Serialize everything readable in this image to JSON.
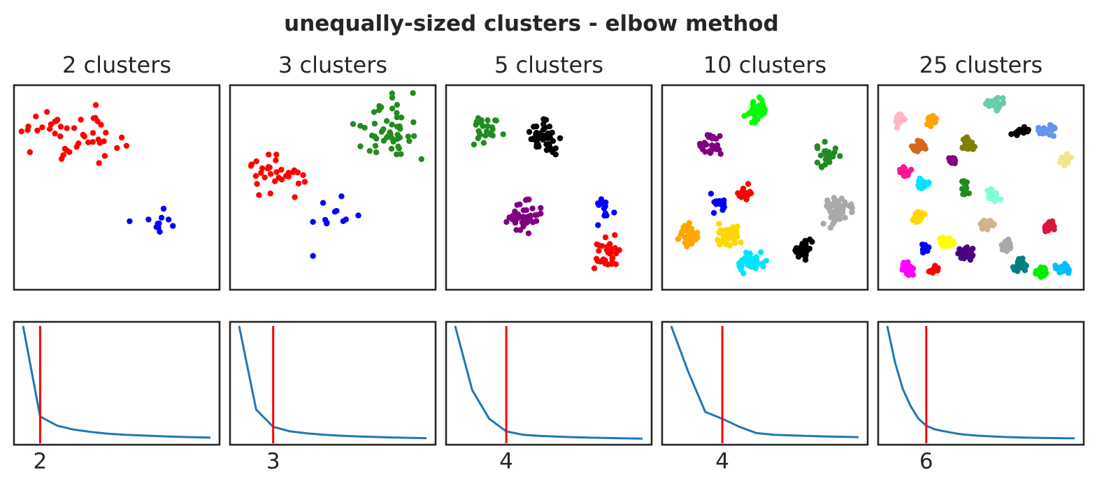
{
  "chart_data": {
    "title": "unequally-sized clusters - elbow method",
    "type": "scatter",
    "panels": [
      {
        "title": "2 clusters",
        "elbow_k": "2",
        "clusters": [
          {
            "color": "#ff0000",
            "n": 45,
            "cx": 0.28,
            "cy": 0.78,
            "sx": 0.13,
            "sy": 0.07
          },
          {
            "color": "#0000ff",
            "n": 11,
            "cx": 0.7,
            "cy": 0.33,
            "sx": 0.07,
            "sy": 0.05
          }
        ],
        "elbow_curve": {
          "k": [
            1,
            2,
            3,
            4,
            5,
            6,
            7,
            8,
            9,
            10,
            11,
            12
          ],
          "y": [
            1.0,
            0.21,
            0.13,
            0.095,
            0.075,
            0.06,
            0.05,
            0.044,
            0.038,
            0.033,
            0.029,
            0.026
          ],
          "line_color": "#1f77b4",
          "marker_color": "#ff0000"
        }
      },
      {
        "title": "3 clusters",
        "elbow_k": "3",
        "clusters": [
          {
            "color": "#228b22",
            "n": 50,
            "cx": 0.78,
            "cy": 0.79,
            "sx": 0.08,
            "sy": 0.09
          },
          {
            "color": "#ff0000",
            "n": 32,
            "cx": 0.18,
            "cy": 0.56,
            "sx": 0.08,
            "sy": 0.05
          },
          {
            "color": "#0000ff",
            "n": 12,
            "cx": 0.53,
            "cy": 0.3,
            "sx": 0.06,
            "sy": 0.07
          }
        ],
        "elbow_curve": {
          "k": [
            1,
            2,
            3,
            4,
            5,
            6,
            7,
            8,
            9,
            10,
            11,
            12
          ],
          "y": [
            1.0,
            0.27,
            0.12,
            0.08,
            0.062,
            0.05,
            0.042,
            0.036,
            0.031,
            0.027,
            0.024,
            0.021
          ],
          "line_color": "#1f77b4",
          "marker_color": "#ff0000"
        }
      },
      {
        "title": "5 clusters",
        "elbow_k": "4",
        "clusters": [
          {
            "color": "#228b22",
            "n": 25,
            "cx": 0.19,
            "cy": 0.81,
            "sx": 0.05,
            "sy": 0.04
          },
          {
            "color": "#000000",
            "n": 45,
            "cx": 0.47,
            "cy": 0.76,
            "sx": 0.04,
            "sy": 0.05
          },
          {
            "color": "#800080",
            "n": 38,
            "cx": 0.37,
            "cy": 0.35,
            "sx": 0.04,
            "sy": 0.04
          },
          {
            "color": "#0000ff",
            "n": 12,
            "cx": 0.77,
            "cy": 0.39,
            "sx": 0.03,
            "sy": 0.04
          },
          {
            "color": "#ff0000",
            "n": 30,
            "cx": 0.82,
            "cy": 0.17,
            "sx": 0.04,
            "sy": 0.04
          }
        ],
        "elbow_curve": {
          "k": [
            1,
            2,
            3,
            4,
            5,
            6,
            7,
            8,
            9,
            10,
            11,
            12
          ],
          "y": [
            1.0,
            0.44,
            0.19,
            0.08,
            0.05,
            0.04,
            0.034,
            0.029,
            0.025,
            0.022,
            0.019,
            0.017
          ],
          "line_color": "#1f77b4",
          "marker_color": "#ff0000"
        }
      },
      {
        "title": "10 clusters",
        "elbow_k": "4",
        "clusters": [
          {
            "color": "#00ff00",
            "n": 45,
            "cx": 0.46,
            "cy": 0.9,
            "sx": 0.03,
            "sy": 0.03
          },
          {
            "color": "#800080",
            "n": 28,
            "cx": 0.22,
            "cy": 0.71,
            "sx": 0.025,
            "sy": 0.03
          },
          {
            "color": "#228b22",
            "n": 22,
            "cx": 0.82,
            "cy": 0.67,
            "sx": 0.03,
            "sy": 0.03
          },
          {
            "color": "#ff0000",
            "n": 14,
            "cx": 0.4,
            "cy": 0.49,
            "sx": 0.03,
            "sy": 0.025
          },
          {
            "color": "#0000ff",
            "n": 16,
            "cx": 0.26,
            "cy": 0.42,
            "sx": 0.022,
            "sy": 0.025
          },
          {
            "color": "#a9a9a9",
            "n": 48,
            "cx": 0.86,
            "cy": 0.38,
            "sx": 0.04,
            "sy": 0.04
          },
          {
            "color": "#ffa500",
            "n": 42,
            "cx": 0.11,
            "cy": 0.25,
            "sx": 0.03,
            "sy": 0.03
          },
          {
            "color": "#ffd700",
            "n": 40,
            "cx": 0.31,
            "cy": 0.25,
            "sx": 0.03,
            "sy": 0.03
          },
          {
            "color": "#000000",
            "n": 32,
            "cx": 0.7,
            "cy": 0.18,
            "sx": 0.025,
            "sy": 0.025
          },
          {
            "color": "#00e5ff",
            "n": 40,
            "cx": 0.43,
            "cy": 0.11,
            "sx": 0.035,
            "sy": 0.025
          }
        ],
        "elbow_curve": {
          "k": [
            1,
            2,
            3,
            4,
            5,
            6,
            7,
            8,
            9,
            10,
            11,
            12
          ],
          "y": [
            1.0,
            0.6,
            0.25,
            0.19,
            0.12,
            0.065,
            0.05,
            0.045,
            0.04,
            0.036,
            0.033,
            0.03
          ],
          "line_color": "#1f77b4",
          "marker_color": "#ff0000"
        }
      },
      {
        "title": "25 clusters",
        "elbow_k": "6",
        "clusters": [
          {
            "color": "#66cdaa",
            "n": 30,
            "cx": 0.57,
            "cy": 0.93,
            "sx": 0.02,
            "sy": 0.015
          },
          {
            "color": "#ffb6c1",
            "n": 22,
            "cx": 0.08,
            "cy": 0.85,
            "sx": 0.015,
            "sy": 0.02
          },
          {
            "color": "#ffa500",
            "n": 20,
            "cx": 0.24,
            "cy": 0.85,
            "sx": 0.015,
            "sy": 0.015
          },
          {
            "color": "#000000",
            "n": 22,
            "cx": 0.7,
            "cy": 0.79,
            "sx": 0.02,
            "sy": 0.012
          },
          {
            "color": "#6495ed",
            "n": 24,
            "cx": 0.84,
            "cy": 0.79,
            "sx": 0.02,
            "sy": 0.015
          },
          {
            "color": "#d2691e",
            "n": 28,
            "cx": 0.18,
            "cy": 0.71,
            "sx": 0.017,
            "sy": 0.015
          },
          {
            "color": "#808000",
            "n": 26,
            "cx": 0.43,
            "cy": 0.72,
            "sx": 0.017,
            "sy": 0.018
          },
          {
            "color": "#f0e68c",
            "n": 22,
            "cx": 0.93,
            "cy": 0.64,
            "sx": 0.015,
            "sy": 0.015
          },
          {
            "color": "#800080",
            "n": 12,
            "cx": 0.35,
            "cy": 0.64,
            "sx": 0.01,
            "sy": 0.01
          },
          {
            "color": "#ff1493",
            "n": 22,
            "cx": 0.11,
            "cy": 0.58,
            "sx": 0.014,
            "sy": 0.014
          },
          {
            "color": "#00e5ff",
            "n": 22,
            "cx": 0.2,
            "cy": 0.52,
            "sx": 0.015,
            "sy": 0.013
          },
          {
            "color": "#228b22",
            "n": 12,
            "cx": 0.42,
            "cy": 0.5,
            "sx": 0.01,
            "sy": 0.02
          },
          {
            "color": "#7fffd4",
            "n": 28,
            "cx": 0.57,
            "cy": 0.46,
            "sx": 0.017,
            "sy": 0.015
          },
          {
            "color": "#ffd700",
            "n": 24,
            "cx": 0.18,
            "cy": 0.35,
            "sx": 0.014,
            "sy": 0.015
          },
          {
            "color": "#d2b48c",
            "n": 22,
            "cx": 0.53,
            "cy": 0.31,
            "sx": 0.017,
            "sy": 0.014
          },
          {
            "color": "#dc143c",
            "n": 24,
            "cx": 0.85,
            "cy": 0.3,
            "sx": 0.012,
            "sy": 0.014
          },
          {
            "color": "#0000ff",
            "n": 12,
            "cx": 0.21,
            "cy": 0.19,
            "sx": 0.01,
            "sy": 0.012
          },
          {
            "color": "#ffff00",
            "n": 24,
            "cx": 0.32,
            "cy": 0.22,
            "sx": 0.018,
            "sy": 0.013
          },
          {
            "color": "#4b0082",
            "n": 26,
            "cx": 0.42,
            "cy": 0.16,
            "sx": 0.017,
            "sy": 0.017
          },
          {
            "color": "#a9a9a9",
            "n": 22,
            "cx": 0.63,
            "cy": 0.2,
            "sx": 0.014,
            "sy": 0.014
          },
          {
            "color": "#ff00ff",
            "n": 28,
            "cx": 0.12,
            "cy": 0.08,
            "sx": 0.014,
            "sy": 0.016
          },
          {
            "color": "#ff0000",
            "n": 16,
            "cx": 0.26,
            "cy": 0.08,
            "sx": 0.014,
            "sy": 0.012
          },
          {
            "color": "#008080",
            "n": 26,
            "cx": 0.7,
            "cy": 0.1,
            "sx": 0.017,
            "sy": 0.015
          },
          {
            "color": "#00ee00",
            "n": 24,
            "cx": 0.81,
            "cy": 0.06,
            "sx": 0.013,
            "sy": 0.013
          },
          {
            "color": "#00bfff",
            "n": 24,
            "cx": 0.92,
            "cy": 0.08,
            "sx": 0.017,
            "sy": 0.014
          }
        ],
        "elbow_curve": {
          "k": [
            1,
            2,
            3,
            4,
            5,
            6,
            7,
            8,
            9,
            10,
            11,
            12,
            13,
            14,
            15,
            16,
            17,
            18,
            19,
            20,
            21,
            22,
            23,
            24,
            25
          ],
          "y": [
            1.0,
            0.68,
            0.45,
            0.3,
            0.19,
            0.13,
            0.1,
            0.085,
            0.072,
            0.06,
            0.052,
            0.046,
            0.041,
            0.037,
            0.034,
            0.031,
            0.029,
            0.027,
            0.025,
            0.024,
            0.023,
            0.022,
            0.021,
            0.02,
            0.02
          ],
          "line_color": "#1f77b4",
          "marker_color": "#ff0000"
        }
      }
    ]
  }
}
